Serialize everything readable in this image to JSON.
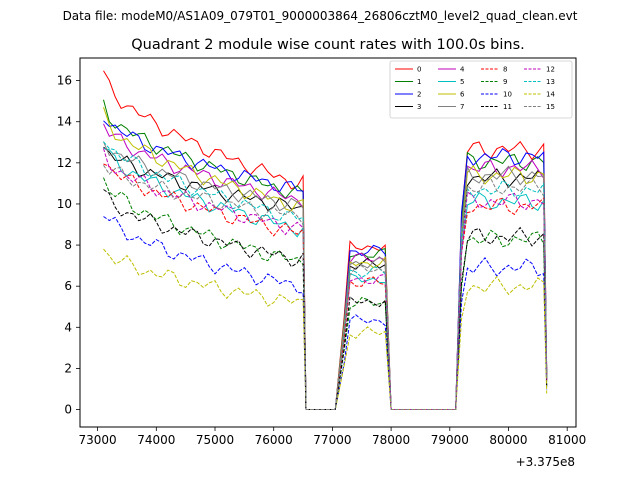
{
  "chart_data": {
    "type": "line",
    "suptitle": "Data file: modeM0/AS1A09_079T01_9000003864_26806cztM0_level2_quad_clean.evt",
    "title": "Quadrant 2 module wise count rates with 100.0s bins.",
    "xlabel": "",
    "ylabel": "",
    "x_offset_label": "+3.375e8",
    "xlim": [
      72700,
      81150
    ],
    "ylim": [
      -0.85,
      17.1
    ],
    "xticks": [
      73000,
      74000,
      75000,
      76000,
      77000,
      78000,
      79000,
      80000,
      81000
    ],
    "xtick_labels": [
      "73000",
      "74000",
      "75000",
      "76000",
      "77000",
      "78000",
      "79000",
      "80000",
      "81000"
    ],
    "yticks": [
      0,
      2,
      4,
      6,
      8,
      10,
      12,
      14,
      16
    ],
    "ytick_labels": [
      "0",
      "2",
      "4",
      "6",
      "8",
      "10",
      "12",
      "14",
      "16"
    ],
    "legend_position": "top-right",
    "segments": [
      {
        "start": 73100,
        "end": 76500,
        "step": 100,
        "scale": 1.0
      },
      {
        "start": 76550,
        "end": 77100,
        "step": 100,
        "zero": true
      },
      {
        "start": 77200,
        "end": 77950,
        "step": 100,
        "scale": 0.72
      },
      {
        "start": 78000,
        "end": 79150,
        "step": 100,
        "zero": true
      },
      {
        "start": 79200,
        "end": 80600,
        "step": 100,
        "scale": 1.15
      },
      {
        "start": 80650,
        "end": 80650,
        "step": 100,
        "scale": 0.16
      }
    ],
    "series": [
      {
        "name": "0",
        "color": "#ff0000",
        "dash": "solid",
        "start": 16.3,
        "end": 11.0
      },
      {
        "name": "1",
        "color": "#008000",
        "dash": "solid",
        "start": 14.8,
        "end": 10.5
      },
      {
        "name": "2",
        "color": "#0000ff",
        "dash": "solid",
        "start": 14.4,
        "end": 10.7
      },
      {
        "name": "3",
        "color": "#000000",
        "dash": "solid",
        "start": 12.8,
        "end": 9.8
      },
      {
        "name": "4",
        "color": "#bf00bf",
        "dash": "solid",
        "start": 13.9,
        "end": 10.2
      },
      {
        "name": "5",
        "color": "#00bfbf",
        "dash": "solid",
        "start": 12.8,
        "end": 8.8
      },
      {
        "name": "6",
        "color": "#bfbf00",
        "dash": "solid",
        "start": 14.3,
        "end": 9.9
      },
      {
        "name": "7",
        "color": "#808080",
        "dash": "solid",
        "start": 13.1,
        "end": 9.9
      },
      {
        "name": "8",
        "color": "#ff0000",
        "dash": "dashed",
        "start": 12.2,
        "end": 8.6
      },
      {
        "name": "9",
        "color": "#008000",
        "dash": "dashed",
        "start": 11.2,
        "end": 7.2
      },
      {
        "name": "10",
        "color": "#0000ff",
        "dash": "dashed",
        "start": 9.6,
        "end": 6.0
      },
      {
        "name": "11",
        "color": "#000000",
        "dash": "dashed",
        "start": 10.5,
        "end": 7.3
      },
      {
        "name": "12",
        "color": "#bf00bf",
        "dash": "dashed",
        "start": 12.4,
        "end": 8.8
      },
      {
        "name": "13",
        "color": "#00bfbf",
        "dash": "dashed",
        "start": 13.3,
        "end": 9.3
      },
      {
        "name": "14",
        "color": "#bfbf00",
        "dash": "dashed",
        "start": 7.8,
        "end": 5.2
      },
      {
        "name": "15",
        "color": "#808080",
        "dash": "dashed",
        "start": 12.0,
        "end": 9.4
      }
    ]
  }
}
